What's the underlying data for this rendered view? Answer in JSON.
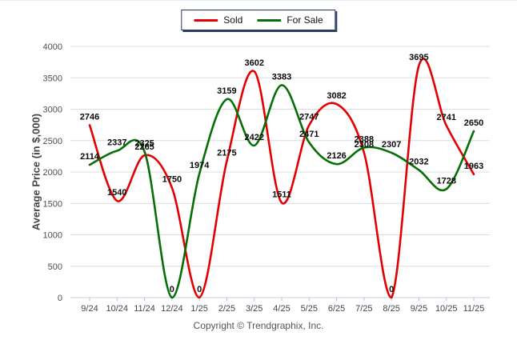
{
  "legend": {
    "items": [
      {
        "label": "Sold",
        "color": "#e40000"
      },
      {
        "label": "For Sale",
        "color": "#066f06"
      }
    ]
  },
  "footer": {
    "copyright": "Copyright © Trendgraphix, Inc."
  },
  "chart_data": {
    "type": "line",
    "title": "",
    "xlabel": "",
    "ylabel": "Average Price (in $,000)",
    "categories": [
      "9/24",
      "10/24",
      "11/24",
      "12/24",
      "1/25",
      "2/25",
      "3/25",
      "4/25",
      "5/25",
      "6/25",
      "7/25",
      "8/25",
      "9/25",
      "10/25",
      "11/25"
    ],
    "series": [
      {
        "name": "Sold",
        "color": "#e40000",
        "values": [
          2746,
          1540,
          2265,
          1750,
          0,
          2175,
          3602,
          1511,
          2747,
          3082,
          2308,
          0,
          3695,
          2741,
          1963
        ]
      },
      {
        "name": "For Sale",
        "color": "#066f06",
        "values": [
          2114,
          2337,
          2325,
          0,
          1974,
          3159,
          2422,
          3383,
          2471,
          2126,
          2388,
          2307,
          2032,
          1728,
          2650
        ]
      }
    ],
    "yticks": [
      0,
      500,
      1000,
      1500,
      2000,
      2500,
      3000,
      3500,
      4000
    ],
    "ylim": [
      0,
      4000
    ],
    "grid": true,
    "smooth": true,
    "point_labels": true,
    "legend_position": "top-center"
  },
  "style": {
    "grid_color": "#dcdcdc",
    "axis_color": "#c3cdd9",
    "tick_color": "#b6c2cf",
    "tick_label_color": "#3d4854",
    "data_label_color": "#0a0a0a"
  }
}
